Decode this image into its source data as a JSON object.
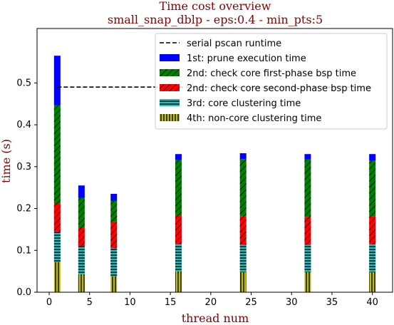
{
  "chart_data": {
    "type": "bar",
    "title": "Time cost overview",
    "subtitle": "small_snap_dblp - eps:0.4 - min_pts:5",
    "xlabel": "thread num",
    "ylabel": "time (s)",
    "xlim": [
      -1.5,
      42.5
    ],
    "ylim": [
      0,
      0.63
    ],
    "xticks": [
      0,
      5,
      10,
      15,
      20,
      25,
      30,
      35,
      40
    ],
    "yticks": [
      0.0,
      0.1,
      0.2,
      0.3,
      0.4,
      0.5
    ],
    "ytick_labels": [
      "0.0",
      "0.1",
      "0.2",
      "0.3",
      "0.4",
      "0.5"
    ],
    "stacked": true,
    "x": [
      1,
      4,
      8,
      16,
      24,
      32,
      40
    ],
    "serial_runtime": {
      "name": "serial pscan runtime",
      "value": 0.49,
      "x_range": [
        1,
        40
      ],
      "color": "#000000",
      "style": "dashed"
    },
    "series": [
      {
        "name": "4th: non-core clustering time",
        "color": "#bfbf00",
        "hatch": "vertical",
        "values": [
          0.072,
          0.043,
          0.038,
          0.05,
          0.048,
          0.048,
          0.048
        ]
      },
      {
        "name": "3rd: core clustering time",
        "color": "#1fbfbf",
        "hatch": "horizontal",
        "values": [
          0.073,
          0.067,
          0.067,
          0.065,
          0.065,
          0.065,
          0.067
        ]
      },
      {
        "name": "2nd: check core second-phase bsp time",
        "color": "#ff0000",
        "hatch": "diagonal",
        "values": [
          0.067,
          0.045,
          0.063,
          0.068,
          0.068,
          0.067,
          0.067
        ]
      },
      {
        "name": "2nd: check core first-phase bsp time",
        "color": "#008000",
        "hatch": "diagonal",
        "values": [
          0.235,
          0.07,
          0.05,
          0.133,
          0.137,
          0.137,
          0.133
        ]
      },
      {
        "name": "1st: prune execution time",
        "color": "#0000ff",
        "hatch": "none",
        "values": [
          0.118,
          0.03,
          0.017,
          0.014,
          0.014,
          0.013,
          0.015
        ]
      }
    ],
    "legend": {
      "placement": "top-right",
      "entries": [
        "serial pscan runtime",
        "1st: prune execution time",
        "2nd: check core first-phase bsp time",
        "2nd: check core second-phase bsp time",
        "3rd: core clustering time",
        "4th: non-core clustering time"
      ]
    },
    "grid": false
  }
}
